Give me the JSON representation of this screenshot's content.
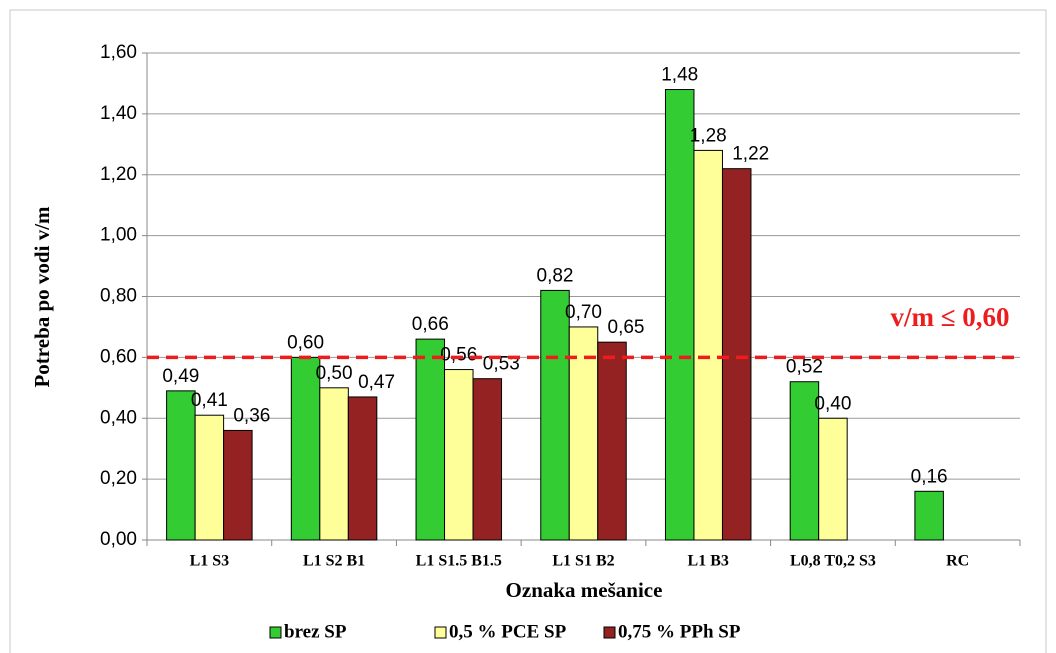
{
  "chart_data": {
    "type": "bar",
    "y_label": "Potreba po vodi  v/m",
    "x_label": "Oznaka mešanice",
    "categories": [
      "L1  S3",
      "L1  S2 B1",
      "L1 S1.5 B1.5",
      "L1  S1 B2",
      "L1  B3",
      "L0,8 T0,2  S3",
      "RC"
    ],
    "series": [
      {
        "name": "brez SP",
        "color": "#33cc33",
        "values": [
          0.49,
          0.6,
          0.66,
          0.82,
          1.48,
          0.52,
          0.16
        ],
        "value_labels": [
          "0,49",
          "0,60",
          "0,66",
          "0,82",
          "1,48",
          "0,52",
          "0,16"
        ]
      },
      {
        "name": "0,5 % PCE SP",
        "color": "#ffff99",
        "values": [
          0.41,
          0.5,
          0.56,
          0.7,
          1.28,
          0.4,
          null
        ],
        "value_labels": [
          "0,41",
          "0,50",
          "0,56",
          "0,70",
          "1,28",
          "0,40",
          null
        ]
      },
      {
        "name": "0,75 % PPh SP",
        "color": "#952222",
        "values": [
          0.36,
          0.47,
          0.53,
          0.65,
          1.22,
          null,
          null
        ],
        "value_labels": [
          "0,36",
          "0,47",
          "0,53",
          "0,65",
          "1,22",
          null,
          null
        ]
      }
    ],
    "ylim": [
      0,
      1.6
    ],
    "yticks": [
      {
        "value": 0,
        "label": "0,00"
      },
      {
        "value": 0.2,
        "label": "0,20"
      },
      {
        "value": 0.4,
        "label": "0,40"
      },
      {
        "value": 0.6,
        "label": "0,60"
      },
      {
        "value": 0.8,
        "label": "0,80"
      },
      {
        "value": 1.0,
        "label": "1,00"
      },
      {
        "value": 1.2,
        "label": "1,20"
      },
      {
        "value": 1.4,
        "label": "1,40"
      },
      {
        "value": 1.6,
        "label": "1,60"
      }
    ],
    "grid": true,
    "reference_line": {
      "value": 0.6,
      "label": "v/m ≤ 0,60",
      "color": "#ee1c1c"
    },
    "legend": "bottom"
  }
}
